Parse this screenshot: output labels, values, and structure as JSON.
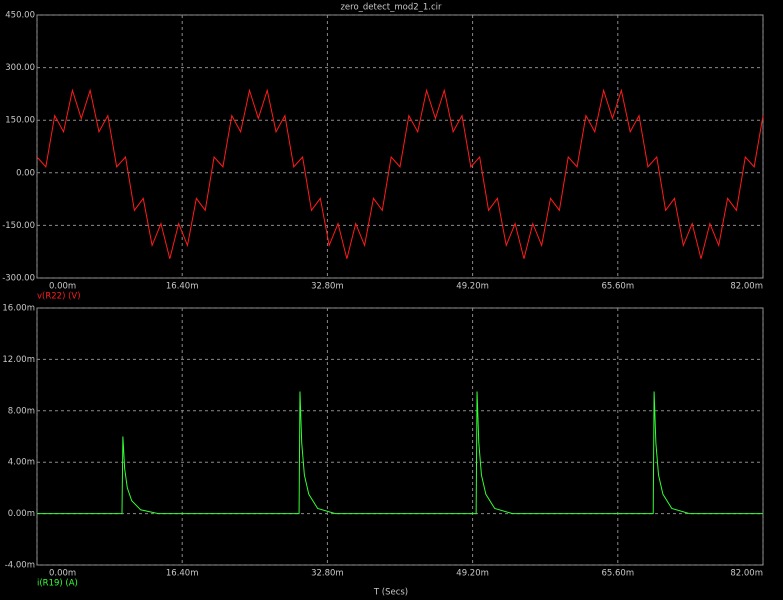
{
  "chart_data": [
    {
      "type": "line",
      "title": "zero_detect_mod2_1.cir",
      "x": [
        0,
        0.001,
        0.002,
        0.003,
        0.004,
        0.005,
        0.006,
        0.007,
        0.008,
        0.009,
        0.01,
        0.011,
        0.012,
        0.013,
        0.014,
        0.015,
        0.016,
        0.017,
        0.018,
        0.019,
        0.02,
        0.021,
        0.022,
        0.023,
        0.024,
        0.025,
        0.026,
        0.027,
        0.028,
        0.029,
        0.03,
        0.031,
        0.032,
        0.033,
        0.034,
        0.035,
        0.036,
        0.037,
        0.038,
        0.039,
        0.04,
        0.041,
        0.042,
        0.043,
        0.044,
        0.045,
        0.046,
        0.047,
        0.048,
        0.049,
        0.05,
        0.051,
        0.052,
        0.053,
        0.054,
        0.055,
        0.056,
        0.057,
        0.058,
        0.059,
        0.06,
        0.061,
        0.062,
        0.063,
        0.064,
        0.065,
        0.066,
        0.067,
        0.068,
        0.069,
        0.07,
        0.071,
        0.072,
        0.073,
        0.074,
        0.075,
        0.076,
        0.077,
        0.078,
        0.079,
        0.08,
        0.081,
        0.082
      ],
      "series": [
        {
          "name": "v(R22) (V)",
          "color": "#ff1a1a",
          "values": [
            45,
            17,
            163,
            117,
            235,
            155,
            235,
            117,
            163,
            17,
            45,
            -107,
            -73,
            -207,
            -145,
            -245,
            -145,
            -207,
            -73,
            -107,
            45,
            17,
            163,
            117,
            235,
            155,
            235,
            117,
            163,
            17,
            45,
            -107,
            -73,
            -207,
            -145,
            -245,
            -145,
            -207,
            -73,
            -107,
            45,
            17,
            163,
            117,
            235,
            155,
            235,
            117,
            163,
            17,
            45,
            -107,
            -73,
            -207,
            -145,
            -245,
            -145,
            -207,
            -73,
            -107,
            45,
            17,
            163,
            117,
            235,
            155,
            235,
            117,
            163,
            17,
            45,
            -107,
            -73,
            -207,
            -145,
            -245,
            -145,
            -207,
            -73,
            -107,
            45,
            17,
            163
          ]
        }
      ],
      "xlim": [
        0,
        0.082
      ],
      "xticks": [
        {
          "value": 0,
          "label": "0.00m"
        },
        {
          "value": 0.0164,
          "label": "16.40m"
        },
        {
          "value": 0.0328,
          "label": "32.80m"
        },
        {
          "value": 0.0492,
          "label": "49.20m"
        },
        {
          "value": 0.0656,
          "label": "65.60m"
        },
        {
          "value": 0.082,
          "label": "82.00m"
        }
      ],
      "ylim": [
        -300,
        450
      ],
      "yticks": [
        {
          "value": -300,
          "label": "-300.00"
        },
        {
          "value": -150,
          "label": "-150.00"
        },
        {
          "value": 0,
          "label": "0.00"
        },
        {
          "value": 150,
          "label": "150.00"
        },
        {
          "value": 300,
          "label": "300.00"
        },
        {
          "value": 450,
          "label": "450.00"
        }
      ],
      "grid": true
    },
    {
      "type": "line",
      "xlabel": "T (Secs)",
      "x": [
        0,
        0.0096,
        0.0097,
        0.0099,
        0.0102,
        0.0107,
        0.0117,
        0.0137,
        0.0296,
        0.0297,
        0.0299,
        0.0302,
        0.0307,
        0.0317,
        0.0337,
        0.0496,
        0.0497,
        0.0499,
        0.0502,
        0.0507,
        0.0517,
        0.0537,
        0.0696,
        0.0697,
        0.0699,
        0.0702,
        0.0707,
        0.0717,
        0.0737,
        0.082
      ],
      "series": [
        {
          "name": "i(R19) (A)",
          "color": "#33ff33",
          "values": [
            0,
            0,
            0.006,
            0.0035,
            0.002,
            0.001,
            0.0003,
            0,
            0,
            0.0095,
            0.0055,
            0.003,
            0.0015,
            0.0004,
            0,
            0,
            0.0095,
            0.0055,
            0.003,
            0.0015,
            0.0004,
            0,
            0,
            0.0095,
            0.0055,
            0.003,
            0.0015,
            0.0004,
            0,
            0
          ]
        }
      ],
      "xlim": [
        0,
        0.082
      ],
      "xticks": [
        {
          "value": 0,
          "label": "0.00m"
        },
        {
          "value": 0.0164,
          "label": "16.40m"
        },
        {
          "value": 0.0328,
          "label": "32.80m"
        },
        {
          "value": 0.0492,
          "label": "49.20m"
        },
        {
          "value": 0.0656,
          "label": "65.60m"
        },
        {
          "value": 0.082,
          "label": "82.00m"
        }
      ],
      "ylim": [
        -0.004,
        0.016
      ],
      "yticks": [
        {
          "value": -0.004,
          "label": "-4.00m"
        },
        {
          "value": 0,
          "label": "0.00m"
        },
        {
          "value": 0.004,
          "label": "4.00m"
        },
        {
          "value": 0.008,
          "label": "8.00m"
        },
        {
          "value": 0.012,
          "label": "12.00m"
        },
        {
          "value": 0.016,
          "label": "16.00m"
        }
      ],
      "grid": true
    }
  ]
}
